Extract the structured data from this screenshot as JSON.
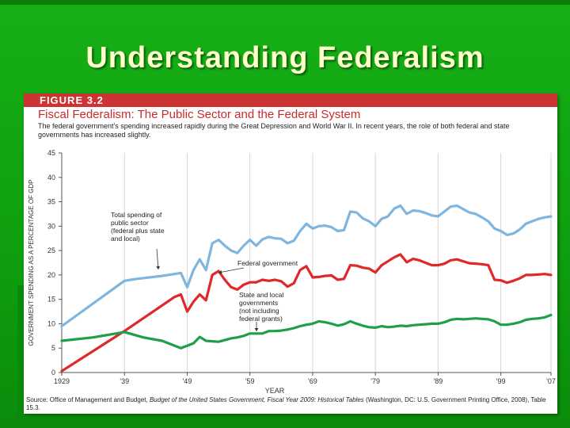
{
  "slide": {
    "title": "Understanding Federalism",
    "colors": {
      "background": "#10a010",
      "title": "#ffffcc",
      "header_bar": "#cc3333"
    }
  },
  "figure": {
    "label": "FIGURE 3.2",
    "title": "Fiscal Federalism: The Public Sector and the Federal System",
    "subtitle": "The federal government's spending increased rapidly during the Great Depression and World War II. In recent years, the role of both federal and state governments has increased slightly.",
    "source_prefix": "Source: Office of Management and Budget, ",
    "source_title": "Budget of the United States Government, Fiscal Year 2009: Historical Tables",
    "source_suffix": " (Washington, DC: U.S. Government Printing Office, 2008), Table 15.3."
  },
  "chart_data": {
    "type": "line",
    "xlabel": "YEAR",
    "ylabel": "GOVERNMENT SPENDING AS A PERCENTAGE OF GDP",
    "xlim": [
      1929,
      2007
    ],
    "ylim": [
      0,
      45
    ],
    "x_ticks": [
      1929,
      1939,
      1949,
      1959,
      1969,
      1979,
      1989,
      1999,
      2007
    ],
    "x_tick_labels": [
      "1929",
      "'39",
      "'49",
      "'59",
      "'69",
      "'79",
      "'89",
      "'99",
      "'07"
    ],
    "y_ticks": [
      0,
      5,
      10,
      15,
      20,
      25,
      30,
      35,
      40,
      45
    ],
    "y_tick_labels": [
      "0",
      "5",
      "10",
      "15",
      "20",
      "25",
      "30",
      "35",
      "40",
      "45"
    ],
    "grid": "vertical",
    "series": [
      {
        "color": "#7fb6e0",
        "points": [
          [
            1929,
            9.5
          ],
          [
            1939,
            18.8
          ],
          [
            1940,
            19
          ],
          [
            1941,
            19.2
          ],
          [
            1945,
            19.8
          ],
          [
            1947,
            20.2
          ],
          [
            1948,
            20.4
          ],
          [
            1949,
            17.5
          ],
          [
            1950,
            21
          ],
          [
            1951,
            23.2
          ],
          [
            1952,
            21
          ],
          [
            1953,
            26.5
          ],
          [
            1954,
            27.2
          ],
          [
            1955,
            26
          ],
          [
            1956,
            25
          ],
          [
            1957,
            24.5
          ],
          [
            1958,
            26
          ],
          [
            1959,
            27.2
          ],
          [
            1960,
            26
          ],
          [
            1961,
            27.3
          ],
          [
            1962,
            27.8
          ],
          [
            1963,
            27.5
          ],
          [
            1964,
            27.4
          ],
          [
            1965,
            26.5
          ],
          [
            1966,
            27
          ],
          [
            1967,
            29
          ],
          [
            1968,
            30.5
          ],
          [
            1969,
            29.5
          ],
          [
            1970,
            30
          ],
          [
            1971,
            30.1
          ],
          [
            1972,
            29.8
          ],
          [
            1973,
            29
          ],
          [
            1974,
            29.2
          ],
          [
            1975,
            33
          ],
          [
            1976,
            32.8
          ],
          [
            1977,
            31.6
          ],
          [
            1978,
            31
          ],
          [
            1979,
            30
          ],
          [
            1980,
            31.5
          ],
          [
            1981,
            32
          ],
          [
            1982,
            33.6
          ],
          [
            1983,
            34.2
          ],
          [
            1984,
            32.5
          ],
          [
            1985,
            33.2
          ],
          [
            1986,
            33.1
          ],
          [
            1987,
            32.7
          ],
          [
            1988,
            32.2
          ],
          [
            1989,
            32
          ],
          [
            1990,
            33
          ],
          [
            1991,
            34
          ],
          [
            1992,
            34.2
          ],
          [
            1993,
            33.5
          ],
          [
            1994,
            32.8
          ],
          [
            1995,
            32.5
          ],
          [
            1996,
            31.8
          ],
          [
            1997,
            31
          ],
          [
            1998,
            29.5
          ],
          [
            1999,
            29
          ],
          [
            2000,
            28.2
          ],
          [
            2001,
            28.5
          ],
          [
            2002,
            29.3
          ],
          [
            2003,
            30.5
          ],
          [
            2004,
            31
          ],
          [
            2005,
            31.5
          ],
          [
            2006,
            31.8
          ],
          [
            2007,
            32
          ]
        ]
      },
      {
        "color": "#e02828",
        "points": [
          [
            1929,
            0.3
          ],
          [
            1939,
            8.5
          ],
          [
            1947,
            15.5
          ],
          [
            1948,
            16
          ],
          [
            1949,
            12.5
          ],
          [
            1950,
            14.5
          ],
          [
            1951,
            16
          ],
          [
            1952,
            14.8
          ],
          [
            1953,
            20
          ],
          [
            1954,
            20.8
          ],
          [
            1955,
            19
          ],
          [
            1956,
            17.5
          ],
          [
            1957,
            17
          ],
          [
            1958,
            18
          ],
          [
            1959,
            18.5
          ],
          [
            1960,
            18.5
          ],
          [
            1961,
            19
          ],
          [
            1962,
            18.8
          ],
          [
            1963,
            19
          ],
          [
            1964,
            18.7
          ],
          [
            1965,
            17.6
          ],
          [
            1966,
            18.3
          ],
          [
            1967,
            21
          ],
          [
            1968,
            21.8
          ],
          [
            1969,
            19.5
          ],
          [
            1970,
            19.6
          ],
          [
            1971,
            19.8
          ],
          [
            1972,
            19.9
          ],
          [
            1973,
            19
          ],
          [
            1974,
            19.2
          ],
          [
            1975,
            22
          ],
          [
            1976,
            21.9
          ],
          [
            1977,
            21.5
          ],
          [
            1978,
            21.3
          ],
          [
            1979,
            20.5
          ],
          [
            1980,
            22
          ],
          [
            1981,
            22.8
          ],
          [
            1982,
            23.6
          ],
          [
            1983,
            24.2
          ],
          [
            1984,
            22.6
          ],
          [
            1985,
            23.3
          ],
          [
            1986,
            23
          ],
          [
            1987,
            22.5
          ],
          [
            1988,
            22
          ],
          [
            1989,
            22
          ],
          [
            1990,
            22.3
          ],
          [
            1991,
            23
          ],
          [
            1992,
            23.2
          ],
          [
            1993,
            22.8
          ],
          [
            1994,
            22.4
          ],
          [
            1995,
            22.3
          ],
          [
            1996,
            22.2
          ],
          [
            1997,
            22
          ],
          [
            1998,
            19
          ],
          [
            1999,
            18.9
          ],
          [
            2000,
            18.4
          ],
          [
            2001,
            18.8
          ],
          [
            2002,
            19.3
          ],
          [
            2003,
            20
          ],
          [
            2004,
            20
          ],
          [
            2005,
            20.1
          ],
          [
            2006,
            20.2
          ],
          [
            2007,
            20
          ]
        ]
      },
      {
        "color": "#1fa048",
        "points": [
          [
            1929,
            6.5
          ],
          [
            1934,
            7.2
          ],
          [
            1939,
            8.3
          ],
          [
            1942,
            7.2
          ],
          [
            1945,
            6.5
          ],
          [
            1948,
            5
          ],
          [
            1950,
            6
          ],
          [
            1951,
            7.3
          ],
          [
            1952,
            6.5
          ],
          [
            1953,
            6.4
          ],
          [
            1954,
            6.3
          ],
          [
            1956,
            7
          ],
          [
            1957,
            7.2
          ],
          [
            1958,
            7.5
          ],
          [
            1959,
            8
          ],
          [
            1960,
            8
          ],
          [
            1961,
            8
          ],
          [
            1962,
            8.5
          ],
          [
            1963,
            8.5
          ],
          [
            1964,
            8.6
          ],
          [
            1965,
            8.8
          ],
          [
            1966,
            9.1
          ],
          [
            1967,
            9.5
          ],
          [
            1968,
            9.8
          ],
          [
            1969,
            10
          ],
          [
            1970,
            10.5
          ],
          [
            1971,
            10.3
          ],
          [
            1972,
            10
          ],
          [
            1973,
            9.6
          ],
          [
            1974,
            9.9
          ],
          [
            1975,
            10.5
          ],
          [
            1976,
            10
          ],
          [
            1977,
            9.6
          ],
          [
            1978,
            9.3
          ],
          [
            1979,
            9.2
          ],
          [
            1980,
            9.5
          ],
          [
            1981,
            9.3
          ],
          [
            1982,
            9.4
          ],
          [
            1983,
            9.6
          ],
          [
            1984,
            9.5
          ],
          [
            1985,
            9.7
          ],
          [
            1986,
            9.8
          ],
          [
            1987,
            9.9
          ],
          [
            1988,
            10
          ],
          [
            1989,
            10
          ],
          [
            1990,
            10.3
          ],
          [
            1991,
            10.8
          ],
          [
            1992,
            11
          ],
          [
            1993,
            10.9
          ],
          [
            1994,
            11
          ],
          [
            1995,
            11.1
          ],
          [
            1996,
            11
          ],
          [
            1997,
            10.9
          ],
          [
            1998,
            10.5
          ],
          [
            1999,
            9.8
          ],
          [
            2000,
            9.8
          ],
          [
            2001,
            10
          ],
          [
            2002,
            10.3
          ],
          [
            2003,
            10.8
          ],
          [
            2004,
            11
          ],
          [
            2005,
            11.1
          ],
          [
            2006,
            11.3
          ],
          [
            2007,
            11.8
          ]
        ]
      }
    ],
    "annotations": [
      {
        "lines": [
          "Total spending of",
          "public sector",
          "(federal plus state",
          "and local)"
        ]
      },
      {
        "lines": [
          "Federal government"
        ]
      },
      {
        "lines": [
          "State and local",
          "governments",
          "(not including",
          "federal grants)"
        ]
      }
    ]
  }
}
